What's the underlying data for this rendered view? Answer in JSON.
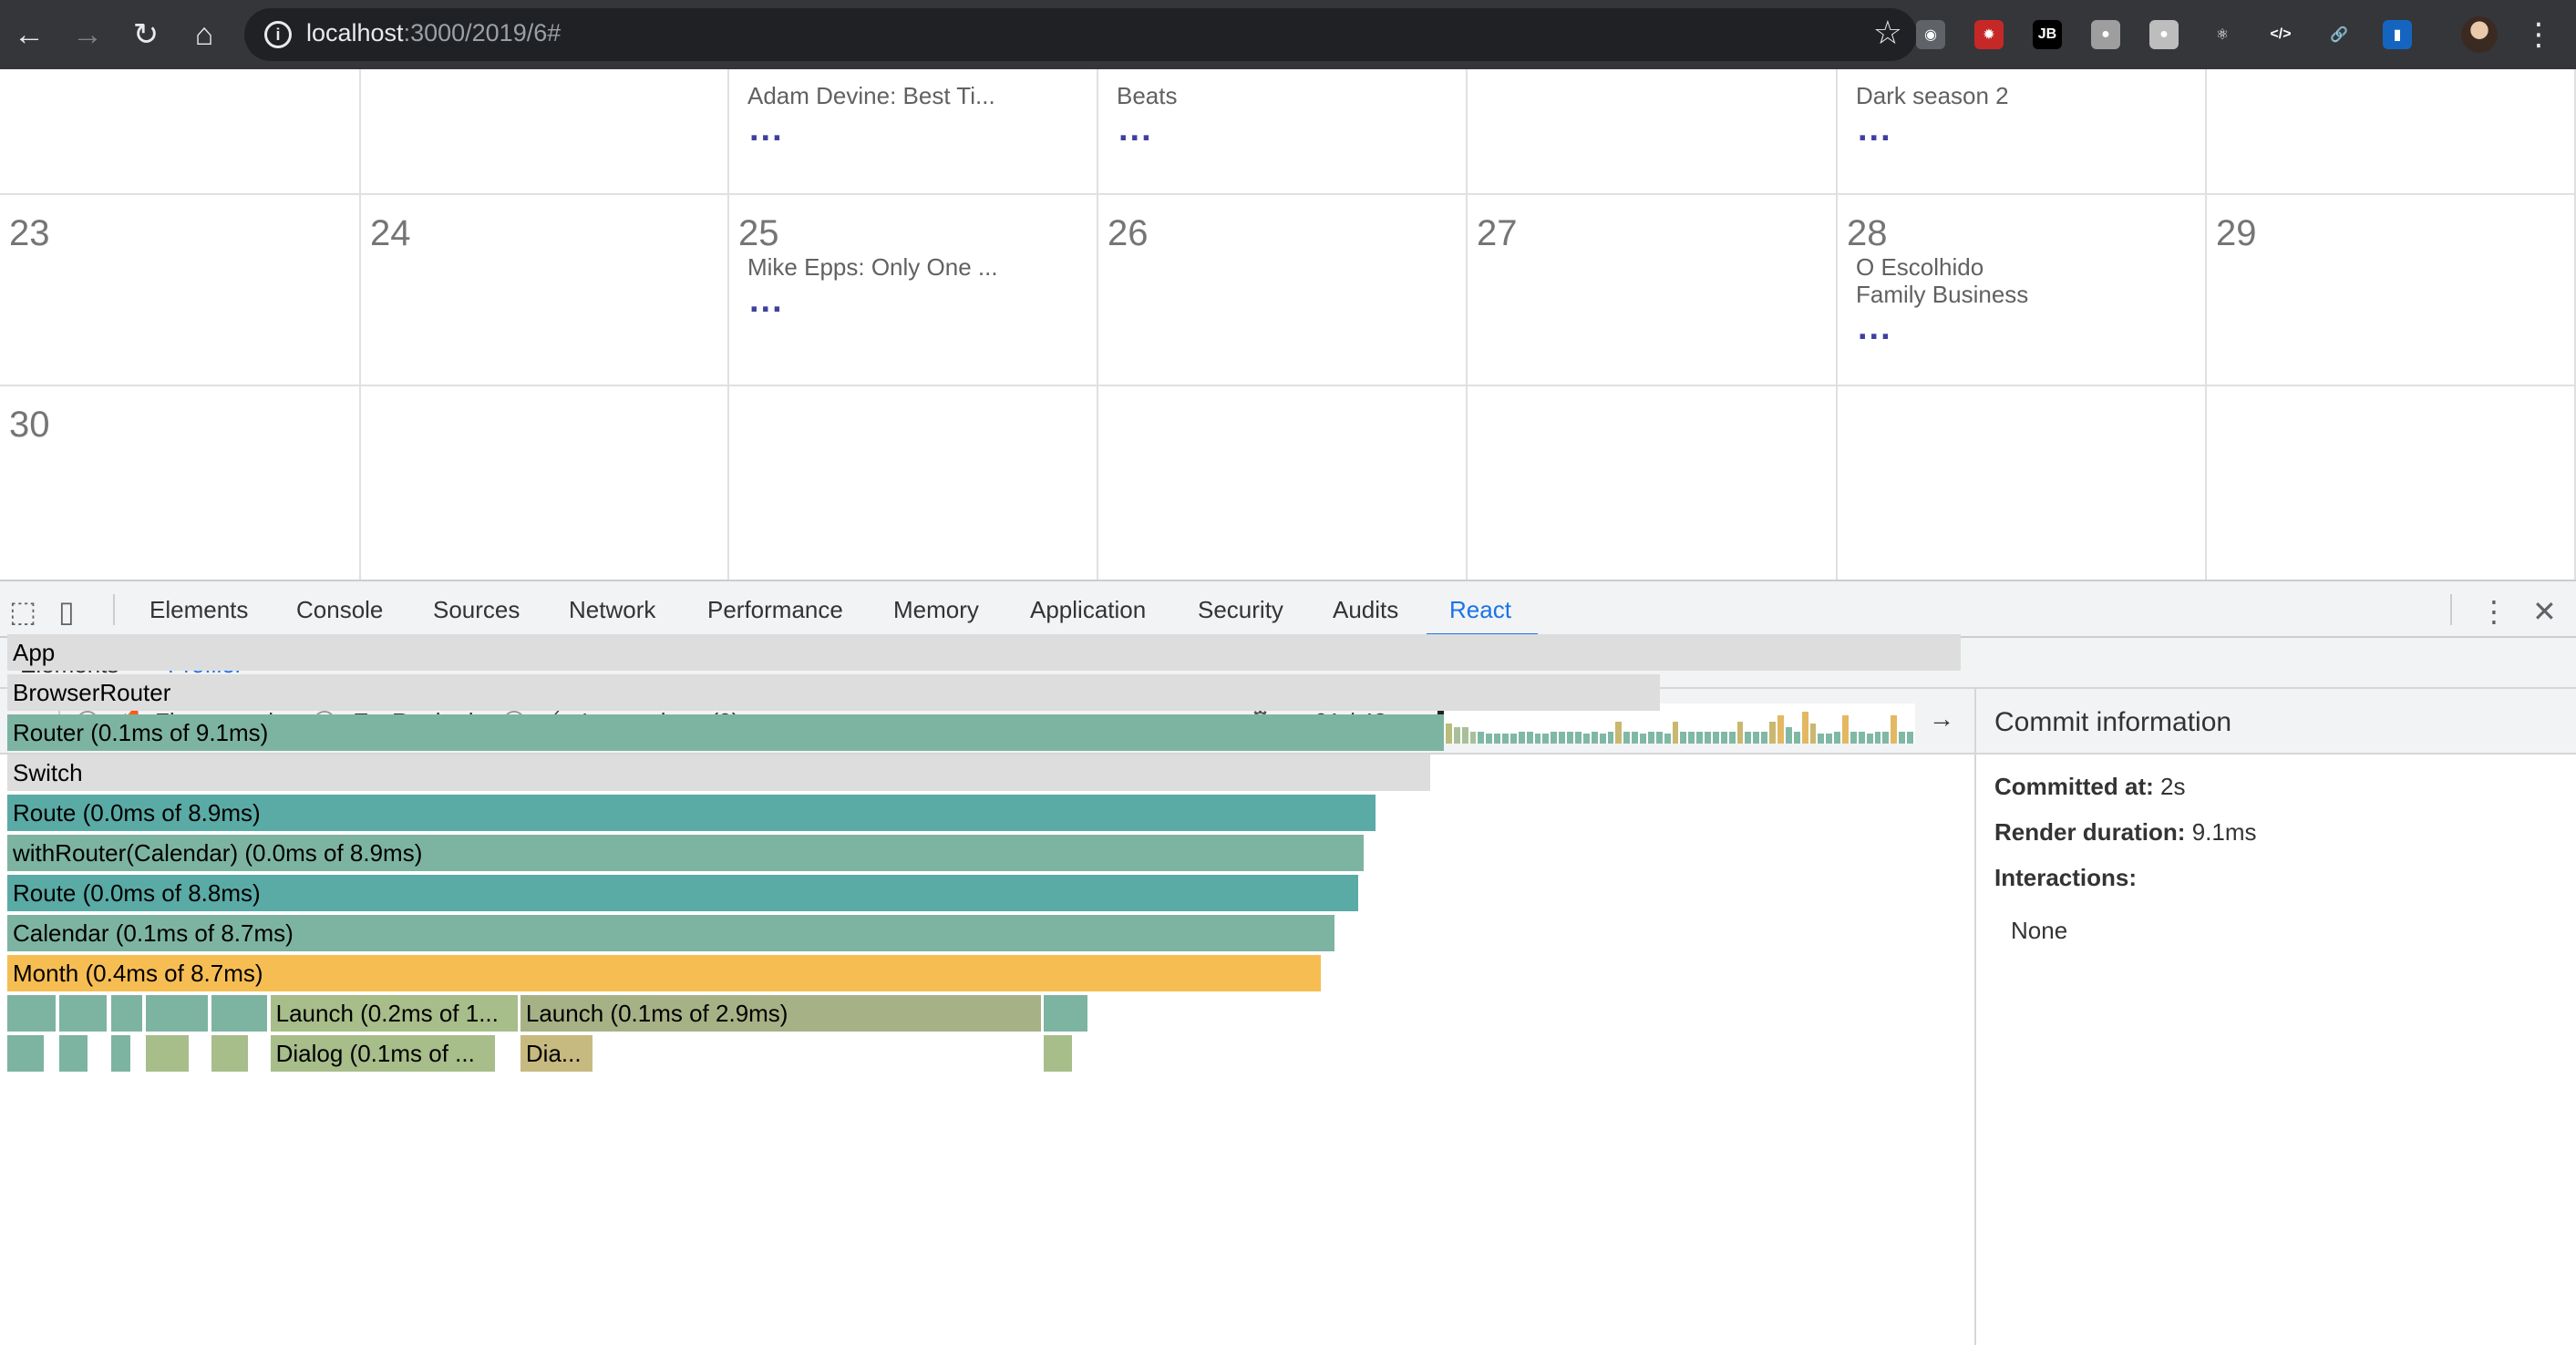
{
  "browser": {
    "url_host": "localhost",
    "url_path": ":3000/2019/6#",
    "extensions": [
      {
        "name": "camera-extension-icon",
        "glyph": "◉",
        "bg": "#5f6368"
      },
      {
        "name": "octopus-extension-icon",
        "glyph": "✹",
        "bg": "#c62828"
      },
      {
        "name": "jetbrains-extension-icon",
        "glyph": "JB",
        "bg": "#000000"
      },
      {
        "name": "circle-extension-icon",
        "glyph": "●",
        "bg": "#9e9e9e"
      },
      {
        "name": "search-extension-icon",
        "glyph": "●",
        "bg": "#bdbdbd"
      },
      {
        "name": "react-extension-icon",
        "glyph": "⚛",
        "bg": "#35363a"
      },
      {
        "name": "code-extension-icon",
        "glyph": "</>",
        "bg": "#35363a"
      },
      {
        "name": "link-extension-icon",
        "glyph": "🔗",
        "bg": "#35363a"
      },
      {
        "name": "flag-extension-icon",
        "glyph": "▮",
        "bg": "#1565c0"
      }
    ]
  },
  "calendar": {
    "top_row": [
      {
        "events": [],
        "more": false
      },
      {
        "events": [],
        "more": false
      },
      {
        "events": [
          "Adam Devine: Best Ti..."
        ],
        "more": true
      },
      {
        "events": [
          "Beats"
        ],
        "more": true
      },
      {
        "events": [],
        "more": false
      },
      {
        "events": [
          "Dark season 2"
        ],
        "more": true
      },
      {
        "events": [],
        "more": false
      }
    ],
    "week": [
      {
        "day": "23",
        "events": [],
        "more": false
      },
      {
        "day": "24",
        "events": [],
        "more": false
      },
      {
        "day": "25",
        "events": [
          "Mike Epps: Only One ..."
        ],
        "more": true
      },
      {
        "day": "26",
        "events": [],
        "more": false
      },
      {
        "day": "27",
        "events": [],
        "more": false
      },
      {
        "day": "28",
        "events": [
          "O Escolhido",
          "Family Business"
        ],
        "more": true
      },
      {
        "day": "29",
        "events": [],
        "more": false
      }
    ],
    "last_week": [
      {
        "day": "30"
      },
      {
        "day": ""
      },
      {
        "day": ""
      },
      {
        "day": ""
      },
      {
        "day": ""
      },
      {
        "day": ""
      },
      {
        "day": ""
      }
    ],
    "more_label": "..."
  },
  "devtools": {
    "tabs": [
      "Elements",
      "Console",
      "Sources",
      "Network",
      "Performance",
      "Memory",
      "Application",
      "Security",
      "Audits",
      "React"
    ],
    "active_tab": "React",
    "sub_tabs": [
      "Elements",
      "Profiler"
    ],
    "active_sub_tab": "Profiler"
  },
  "profiler": {
    "views": {
      "flamegraph": "Flamegraph",
      "ranked": "Ranked",
      "interactions": "Interactions (0)"
    },
    "commit_counter": "01 / 48",
    "commit_bars": [
      0.9,
      0.5,
      0.4,
      0.4,
      0.3,
      0.3,
      0.25,
      0.25,
      0.25,
      0.25,
      0.3,
      0.3,
      0.25,
      0.25,
      0.3,
      0.3,
      0.3,
      0.3,
      0.25,
      0.3,
      0.25,
      0.3,
      0.55,
      0.3,
      0.3,
      0.25,
      0.3,
      0.3,
      0.25,
      0.55,
      0.3,
      0.3,
      0.3,
      0.3,
      0.3,
      0.3,
      0.3,
      0.55,
      0.3,
      0.3,
      0.3,
      0.55,
      0.7,
      0.4,
      0.3,
      0.8,
      0.5,
      0.25,
      0.25,
      0.3,
      0.7,
      0.3,
      0.3,
      0.25,
      0.3,
      0.3,
      0.7,
      0.3,
      0.3
    ],
    "commit_bar_colors": [
      "#222222",
      "#b8bd7c",
      "#a8c09a",
      "#a8c09a",
      "#a8c09a",
      "#7fb8a5",
      "#7fb8a5",
      "#7fb8a5",
      "#7fb8a5",
      "#7fb8a5",
      "#7fb8a5",
      "#7fb8a5",
      "#7fb8a5",
      "#7fb8a5",
      "#7fb8a5",
      "#7fb8a5",
      "#7fb8a5",
      "#7fb8a5",
      "#7fb8a5",
      "#7fb8a5",
      "#7fb8a5",
      "#7fb8a5",
      "#c8b870",
      "#7fb8a5",
      "#7fb8a5",
      "#7fb8a5",
      "#7fb8a5",
      "#7fb8a5",
      "#7fb8a5",
      "#c8b870",
      "#7fb8a5",
      "#7fb8a5",
      "#7fb8a5",
      "#7fb8a5",
      "#7fb8a5",
      "#7fb8a5",
      "#7fb8a5",
      "#c8b870",
      "#7fb8a5",
      "#7fb8a5",
      "#7fb8a5",
      "#c8b870",
      "#e4b862",
      "#7fb8a5",
      "#7fb8a5",
      "#e4b862",
      "#c8b870",
      "#7fb8a5",
      "#7fb8a5",
      "#7fb8a5",
      "#e4b862",
      "#7fb8a5",
      "#7fb8a5",
      "#7fb8a5",
      "#7fb8a5",
      "#7fb8a5",
      "#e4b862",
      "#7fb8a5",
      "#7fb8a5"
    ],
    "flame_rows": [
      [
        {
          "label": "App",
          "start": 0,
          "width": 0.9985,
          "color": "#dddddd"
        }
      ],
      [
        {
          "label": "BrowserRouter",
          "start": 0,
          "width": 0.8447,
          "color": "#dddddd"
        }
      ],
      [
        {
          "label": "Router (0.1ms of 9.1ms)",
          "start": 0,
          "width": 0.7342,
          "color": "#7db4a1"
        }
      ],
      [
        {
          "label": "Switch",
          "start": 0,
          "width": 0.7275,
          "color": "#dddddd"
        }
      ],
      [
        {
          "label": "Route (0.0ms of 8.9ms)",
          "start": 0,
          "width": 0.6995,
          "color": "#5aaaa5"
        }
      ],
      [
        {
          "label": "withRouter(Calendar) (0.0ms of 8.9ms)",
          "start": 0,
          "width": 0.6935,
          "color": "#7db4a1"
        }
      ],
      [
        {
          "label": "Route (0.0ms of 8.8ms)",
          "start": 0,
          "width": 0.6908,
          "color": "#5aaaa5"
        }
      ],
      [
        {
          "label": "Calendar (0.1ms of 8.7ms)",
          "start": 0,
          "width": 0.6784,
          "color": "#7db4a1"
        }
      ],
      [
        {
          "label": "Month (0.4ms of 8.7ms)",
          "start": 0,
          "width": 0.6717,
          "color": "#f6bd53"
        }
      ],
      [
        {
          "label": "",
          "start": 0,
          "width": 0.0245,
          "color": "#7db4a1"
        },
        {
          "label": "",
          "start": 0.0265,
          "width": 0.0245,
          "color": "#7db4a1"
        },
        {
          "label": "",
          "start": 0.053,
          "width": 0.016,
          "color": "#7db4a1"
        },
        {
          "label": "",
          "start": 0.0708,
          "width": 0.0318,
          "color": "#7db4a1"
        },
        {
          "label": "",
          "start": 0.1045,
          "width": 0.0282,
          "color": "#7db4a1"
        },
        {
          "label": "Launch (0.2ms of 1...",
          "start": 0.1345,
          "width": 0.1263,
          "color": "#a7bd8a"
        },
        {
          "label": "Launch (0.1ms of 2.9ms)",
          "start": 0.2623,
          "width": 0.2661,
          "color": "#a7b186"
        },
        {
          "label": "",
          "start": 0.53,
          "width": 0.022,
          "color": "#7db4a1"
        }
      ],
      [
        {
          "label": "",
          "start": 0,
          "width": 0.0185,
          "color": "#7db4a1"
        },
        {
          "label": "",
          "start": 0.0265,
          "width": 0.0145,
          "color": "#7db4a1"
        },
        {
          "label": "",
          "start": 0.053,
          "width": 0.01,
          "color": "#7db4a1"
        },
        {
          "label": "",
          "start": 0.0708,
          "width": 0.022,
          "color": "#a7bd8a"
        },
        {
          "label": "",
          "start": 0.1045,
          "width": 0.0185,
          "color": "#a7bd8a"
        },
        {
          "label": "Dialog (0.1ms of ...",
          "start": 0.1345,
          "width": 0.115,
          "color": "#a7bd8a"
        },
        {
          "label": "Dia...",
          "start": 0.2623,
          "width": 0.037,
          "color": "#c6ba80"
        },
        {
          "label": "",
          "start": 0.53,
          "width": 0.0145,
          "color": "#a7bd8a"
        }
      ]
    ],
    "commit_info": {
      "title": "Commit information",
      "committed_at_label": "Committed at:",
      "committed_at": "2s",
      "render_duration_label": "Render duration:",
      "render_duration": "9.1ms",
      "interactions_label": "Interactions:",
      "interactions_value": "None"
    }
  }
}
